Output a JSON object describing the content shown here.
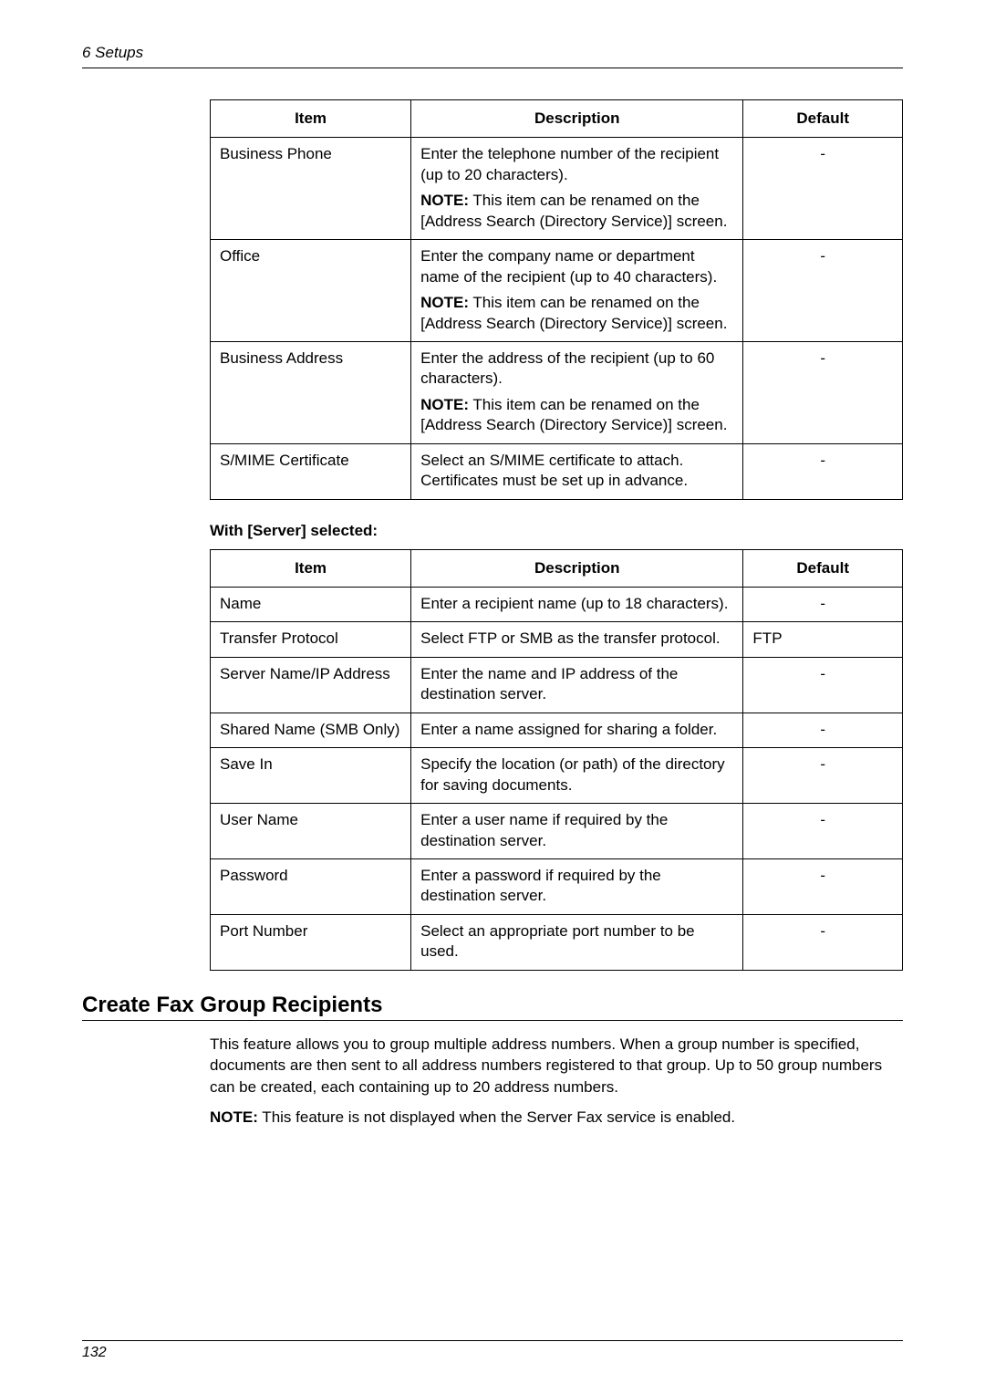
{
  "page": {
    "running_header": "6  Setups",
    "page_number": "132"
  },
  "table1": {
    "headers": {
      "item": "Item",
      "description": "Description",
      "default": "Default"
    },
    "rows": [
      {
        "item": "Business Phone",
        "desc_p1": "Enter the telephone number of the recipient (up to 20 characters).",
        "desc_note_label": "NOTE:",
        "desc_note_text": " This item can be renamed on the [Address Search (Directory Service)] screen.",
        "default": "-"
      },
      {
        "item": "Office",
        "desc_p1": "Enter the company name or department name of the recipient (up to 40 characters).",
        "desc_note_label": "NOTE:",
        "desc_note_text": " This item can be renamed on the [Address Search (Directory Service)] screen.",
        "default": "-"
      },
      {
        "item": "Business Address",
        "desc_p1": "Enter the address of the recipient (up to 60 characters).",
        "desc_note_label": "NOTE:",
        "desc_note_text": " This item can be renamed on the [Address Search (Directory Service)] screen.",
        "default": "-"
      },
      {
        "item": "S/MIME Certificate",
        "desc_p1": "Select an S/MIME certificate to attach. Certificates must be set up in advance.",
        "default": "-"
      }
    ]
  },
  "mid_caption": "With [Server] selected:",
  "table2": {
    "headers": {
      "item": "Item",
      "description": "Description",
      "default": "Default"
    },
    "rows": [
      {
        "item": "Name",
        "desc": "Enter a recipient name (up to 18 characters).",
        "default": "-",
        "default_align": "center"
      },
      {
        "item": "Transfer Protocol",
        "desc": "Select FTP or SMB as the transfer protocol.",
        "default": "FTP",
        "default_align": "left"
      },
      {
        "item": "Server Name/IP Address",
        "desc": "Enter the name and IP address of the destination server.",
        "default": "-",
        "default_align": "center"
      },
      {
        "item": "Shared Name (SMB Only)",
        "desc": "Enter a name assigned for sharing a folder.",
        "default": "-",
        "default_align": "center"
      },
      {
        "item": "Save In",
        "desc": "Specify the location (or path) of the directory for saving documents.",
        "default": "-",
        "default_align": "center"
      },
      {
        "item": "User Name",
        "desc": "Enter a user name if required by the destination server.",
        "default": "-",
        "default_align": "center"
      },
      {
        "item": "Password",
        "desc": "Enter a password if required by the destination server.",
        "default": "-",
        "default_align": "center"
      },
      {
        "item": "Port Number",
        "desc": "Select an appropriate port number to be used.",
        "default": "-",
        "default_align": "center"
      }
    ]
  },
  "section": {
    "heading": "Create Fax Group Recipients",
    "para1": "This feature allows you to group multiple address numbers. When a group number is specified, documents are then sent to all address numbers registered to that group. Up to 50 group numbers can be created, each containing up to 20 address numbers.",
    "note_label": "NOTE:",
    "note_text": " This feature is not displayed when the Server Fax service is enabled."
  }
}
